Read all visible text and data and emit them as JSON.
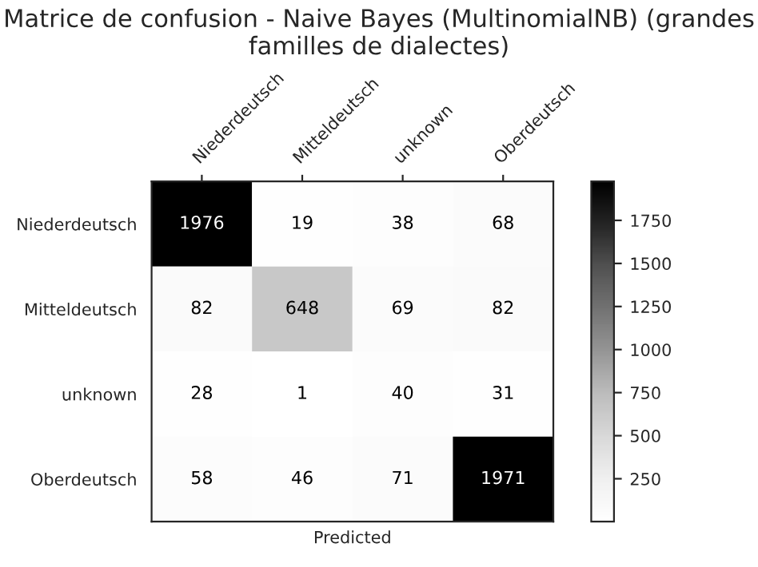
{
  "chart_data": {
    "type": "heatmap",
    "title": "Matrice de confusion - Naive Bayes (MultinomialNB) (grandes familles de dialectes)",
    "xlabel": "Predicted",
    "categories": [
      "Niederdeutsch",
      "Mitteldeutsch",
      "unknown",
      "Oberdeutsch"
    ],
    "y_categories": [
      "Niederdeutsch",
      "Mitteldeutsch",
      "unknown",
      "Oberdeutsch"
    ],
    "cells": [
      [
        1976,
        19,
        38,
        68
      ],
      [
        82,
        648,
        69,
        82
      ],
      [
        28,
        1,
        40,
        31
      ],
      [
        58,
        46,
        71,
        1971
      ]
    ],
    "clim": [
      1,
      1976
    ],
    "cticks": [
      250,
      500,
      750,
      1000,
      1250,
      1500,
      1750
    ],
    "data_labels": true
  }
}
